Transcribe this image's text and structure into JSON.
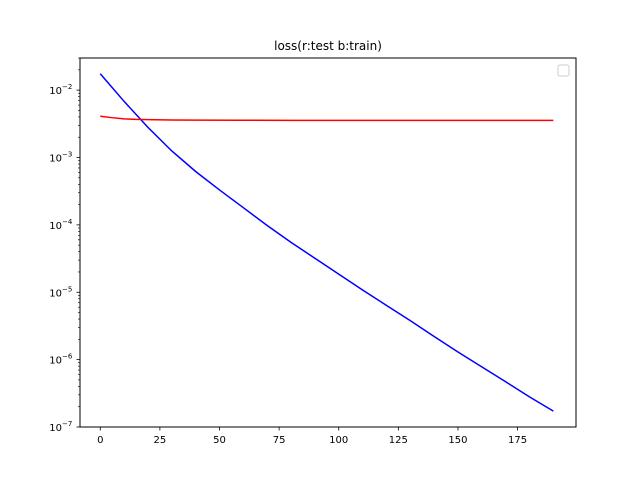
{
  "chart_data": {
    "type": "line",
    "title": "loss(r:test  b:train)",
    "xlabel": "",
    "ylabel": "",
    "xlim": [
      -8.5,
      199.5
    ],
    "ylim": [
      1e-07,
      0.03
    ],
    "yscale": "log",
    "grid": false,
    "legend": "top-right",
    "x_ticks": [
      0,
      25,
      50,
      75,
      100,
      125,
      150,
      175
    ],
    "x_tick_labels": [
      "0",
      "25",
      "50",
      "75",
      "100",
      "125",
      "150",
      "175"
    ],
    "y_ticks": [
      1e-07,
      1e-06,
      1e-05,
      0.0001,
      0.001,
      0.01
    ],
    "y_tick_base": "10",
    "y_tick_exponents": [
      "−7",
      "−6",
      "−5",
      "−4",
      "−3",
      "−2"
    ],
    "series": [
      {
        "color": "#0000ff",
        "x": [
          0,
          10,
          20,
          30,
          40,
          50,
          60,
          70,
          80,
          90,
          100,
          110,
          120,
          130,
          140,
          150,
          160,
          170,
          180,
          190
        ],
        "values": [
          0.0175,
          0.0068,
          0.0028,
          0.00125,
          0.00062,
          0.00033,
          0.00018,
          9.8e-05,
          5.5e-05,
          3.2e-05,
          1.86e-05,
          1.08e-05,
          6.4e-06,
          3.8e-06,
          2.2e-06,
          1.3e-06,
          7.8e-07,
          4.7e-07,
          2.8e-07,
          1.72e-07
        ]
      },
      {
        "color": "#ff0000",
        "x": [
          0,
          5,
          10,
          15,
          20,
          30,
          40,
          60,
          80,
          100,
          120,
          140,
          160,
          190
        ],
        "values": [
          0.0041,
          0.0039,
          0.00375,
          0.00368,
          0.00365,
          0.00361,
          0.00359,
          0.00357,
          0.00356,
          0.00356,
          0.00356,
          0.00356,
          0.00356,
          0.00356
        ]
      }
    ]
  }
}
